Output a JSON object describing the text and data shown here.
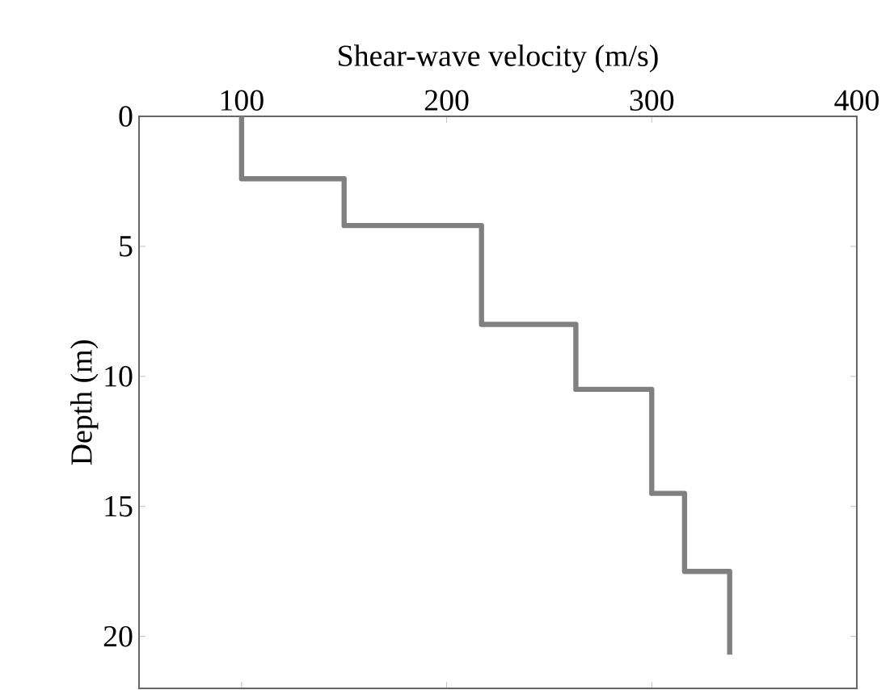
{
  "chart_data": {
    "type": "line",
    "xlabel": "Shear-wave velocity (m/s)",
    "ylabel": "Depth (m)",
    "x": [
      100,
      100,
      150,
      150,
      217,
      217,
      263,
      263,
      300,
      300,
      316,
      316,
      338,
      338
    ],
    "values": [
      0,
      2.4,
      2.4,
      4.2,
      4.2,
      8.0,
      8.0,
      10.5,
      10.5,
      14.5,
      14.5,
      17.5,
      17.5,
      20.7
    ],
    "color": "#808080",
    "xlim": [
      50,
      400
    ],
    "xticks": [
      100,
      200,
      300,
      400
    ],
    "ylim": [
      22,
      0
    ],
    "yticks": [
      0,
      5,
      10,
      15,
      20
    ],
    "grid": false,
    "marker": "none",
    "line_style": "solid"
  }
}
